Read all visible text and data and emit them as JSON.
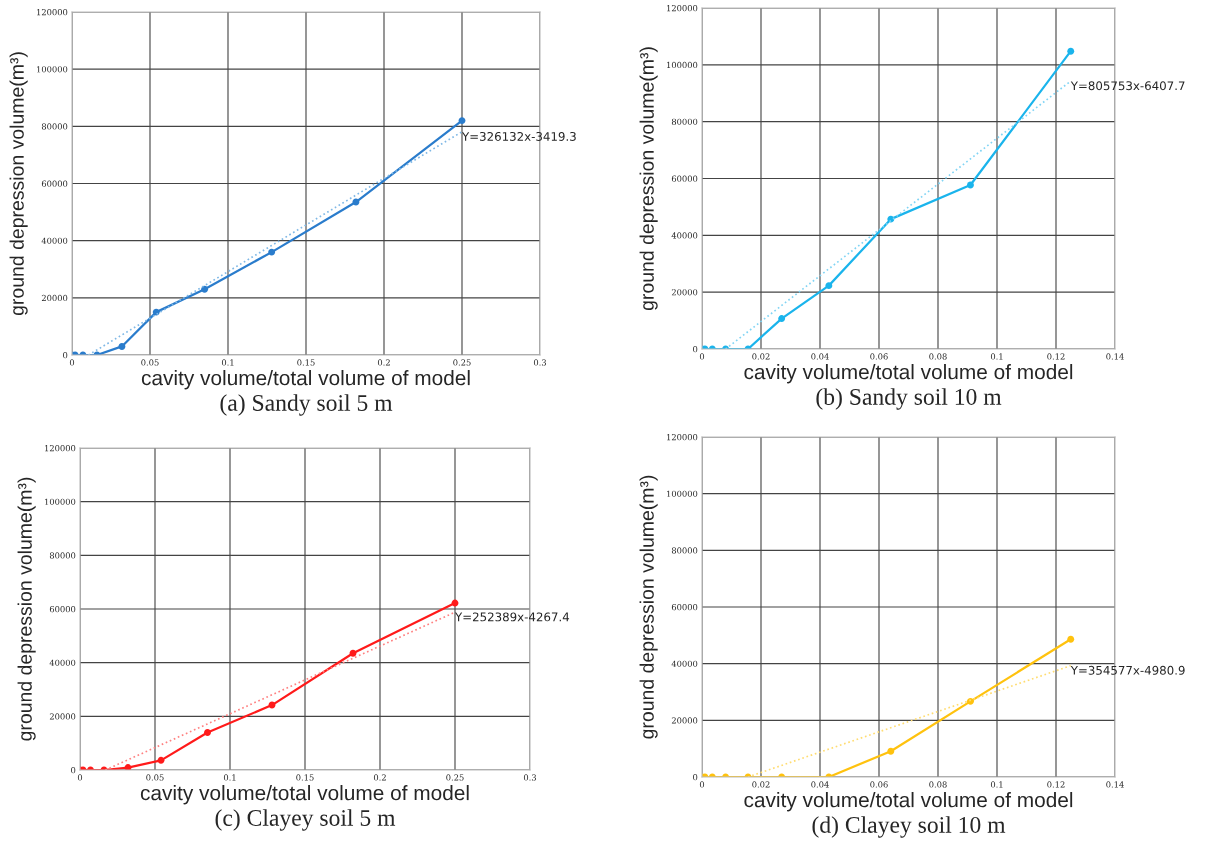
{
  "chart_data": [
    {
      "type": "line",
      "xlabel": "cavity volume/total volume of model",
      "ylabel": "ground depression volume(m³)",
      "xlim": [
        0,
        0.3
      ],
      "xticks": [
        0,
        0.05,
        0.1,
        0.15,
        0.2,
        0.25,
        0.3
      ],
      "ylim": [
        0,
        120000
      ],
      "yticks": [
        0,
        20000,
        40000,
        60000,
        80000,
        100000,
        120000
      ],
      "grid": true,
      "legend": false,
      "marker": "circle",
      "line_style": "solid",
      "series": [
        {
          "color": "#2a7ccc",
          "x": [
            0,
            0.002,
            0.007,
            0.016,
            0.032,
            0.054,
            0.085,
            0.128,
            0.182,
            0.25
          ],
          "values": [
            0,
            0,
            0,
            0,
            3000,
            15000,
            23000,
            36000,
            53500,
            82000
          ]
        },
        {
          "type": "line",
          "color": "#7fb8e6",
          "marker": "none",
          "line_style": "dotted",
          "x": [
            0.0105,
            0.25
          ],
          "values": [
            0,
            78100
          ]
        }
      ],
      "annotations": [
        "Y=326132x-3419.3",
        "(a) Sandy soil 5 m"
      ]
    },
    {
      "type": "line",
      "xlabel": "cavity volume/total volume of model",
      "ylabel": "ground depression volume(m³)",
      "xlim": [
        0,
        0.14
      ],
      "xticks": [
        0,
        0.02,
        0.04,
        0.06,
        0.08,
        0.1,
        0.12,
        0.14
      ],
      "ylim": [
        0,
        120000
      ],
      "yticks": [
        0,
        20000,
        40000,
        60000,
        80000,
        100000,
        120000
      ],
      "grid": true,
      "legend": false,
      "marker": "circle",
      "line_style": "solid",
      "series": [
        {
          "color": "#1ab4ec",
          "x": [
            0,
            0.001,
            0.0035,
            0.008,
            0.0156,
            0.027,
            0.043,
            0.064,
            0.091,
            0.125
          ],
          "values": [
            0,
            0,
            0,
            0,
            0,
            10700,
            22300,
            45700,
            57700,
            104800
          ]
        },
        {
          "type": "line",
          "color": "#80d4f4",
          "marker": "none",
          "line_style": "dotted",
          "x": [
            0.008,
            0.125
          ],
          "values": [
            0,
            94300
          ]
        }
      ],
      "annotations": [
        "Y=805753x-6407.7",
        "(b) Sandy soil 10 m"
      ]
    },
    {
      "type": "line",
      "xlabel": "cavity volume/total volume of model",
      "ylabel": "ground depression volume(m³)",
      "xlim": [
        0,
        0.3
      ],
      "xticks": [
        0,
        0.05,
        0.1,
        0.15,
        0.2,
        0.25,
        0.3
      ],
      "ylim": [
        0,
        120000
      ],
      "yticks": [
        0,
        20000,
        40000,
        60000,
        80000,
        100000,
        120000
      ],
      "grid": true,
      "legend": false,
      "marker": "circle",
      "line_style": "solid",
      "series": [
        {
          "color": "#ff1a1a",
          "x": [
            0,
            0.002,
            0.007,
            0.016,
            0.032,
            0.054,
            0.085,
            0.128,
            0.182,
            0.25
          ],
          "values": [
            0,
            0,
            0,
            0,
            900,
            3600,
            14000,
            24200,
            43500,
            62200
          ]
        },
        {
          "type": "line",
          "color": "#ff8080",
          "marker": "none",
          "line_style": "dotted",
          "x": [
            0.0169,
            0.25
          ],
          "values": [
            0,
            58800
          ]
        }
      ],
      "annotations": [
        "Y=252389x-4267.4",
        "(c) Clayey soil 5 m"
      ]
    },
    {
      "type": "line",
      "xlabel": "cavity volume/total volume of model",
      "ylabel": "ground depression volume(m³)",
      "xlim": [
        0,
        0.14
      ],
      "xticks": [
        0,
        0.02,
        0.04,
        0.06,
        0.08,
        0.1,
        0.12,
        0.14
      ],
      "ylim": [
        0,
        120000
      ],
      "yticks": [
        0,
        20000,
        40000,
        60000,
        80000,
        100000,
        120000
      ],
      "grid": true,
      "legend": false,
      "marker": "circle",
      "line_style": "solid",
      "series": [
        {
          "color": "#ffc20e",
          "x": [
            0,
            0.001,
            0.0035,
            0.008,
            0.0156,
            0.027,
            0.043,
            0.064,
            0.091,
            0.125
          ],
          "values": [
            0,
            0,
            0,
            0,
            0,
            0,
            0,
            9100,
            26700,
            48600
          ]
        },
        {
          "type": "line",
          "color": "#ffdc70",
          "marker": "none",
          "line_style": "dotted",
          "x": [
            0.0156,
            0.125
          ],
          "values": [
            0,
            39300
          ]
        }
      ],
      "annotations": [
        "Y=354577x-4980.9",
        "(d) Clayey soil 10 m"
      ]
    }
  ]
}
